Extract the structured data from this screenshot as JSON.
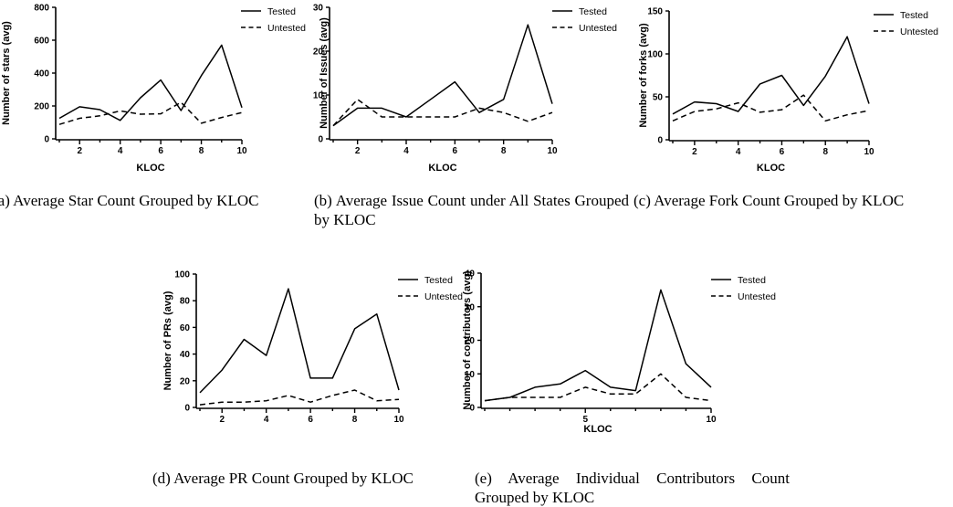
{
  "chart_data": [
    {
      "type": "line",
      "xlabel": "KLOC",
      "ylabel": "Number of stars (avg)",
      "x": [
        1,
        2,
        3,
        4,
        5,
        6,
        7,
        8,
        9,
        10
      ],
      "xticks": [
        2,
        4,
        6,
        8,
        10
      ],
      "yticks": [
        0,
        200,
        400,
        600,
        800
      ],
      "xlim": [
        1,
        10
      ],
      "ylim": [
        0,
        800
      ],
      "legend_position": "top-right",
      "series": [
        {
          "name": "Tested",
          "style": "solid",
          "values": [
            125,
            195,
            178,
            112,
            250,
            358,
            172,
            385,
            570,
            190
          ]
        },
        {
          "name": "Untested",
          "style": "dashed",
          "values": [
            88,
            125,
            140,
            170,
            150,
            152,
            222,
            95,
            130,
            160
          ]
        }
      ],
      "caption": "(a)  Average  Star  Count  Grouped  by KLOC"
    },
    {
      "type": "line",
      "xlabel": "KLOC",
      "ylabel": "Number of Issues (avg)",
      "x": [
        1,
        2,
        3,
        4,
        5,
        6,
        7,
        8,
        9,
        10
      ],
      "xticks": [
        2,
        4,
        6,
        8,
        10
      ],
      "yticks": [
        0,
        10,
        20,
        30
      ],
      "xlim": [
        1,
        10
      ],
      "ylim": [
        0,
        30
      ],
      "legend_position": "top-right",
      "series": [
        {
          "name": "Tested",
          "style": "solid",
          "values": [
            3,
            7,
            7,
            5,
            9,
            13,
            6,
            9,
            26,
            8
          ]
        },
        {
          "name": "Untested",
          "style": "dashed",
          "values": [
            3,
            9,
            5,
            5,
            5,
            5,
            7,
            6,
            4,
            6
          ]
        }
      ],
      "caption": "(b)  Average Issue Count under All States Grouped by KLOC"
    },
    {
      "type": "line",
      "xlabel": "KLOC",
      "ylabel": "Number of forks (avg)",
      "x": [
        1,
        2,
        3,
        4,
        5,
        6,
        7,
        8,
        9,
        10
      ],
      "xticks": [
        2,
        4,
        6,
        8,
        10
      ],
      "yticks": [
        0,
        50,
        100,
        150
      ],
      "xlim": [
        1,
        10
      ],
      "ylim": [
        0,
        150
      ],
      "legend_position": "top-right",
      "series": [
        {
          "name": "Tested",
          "style": "solid",
          "values": [
            30,
            44,
            42,
            33,
            65,
            75,
            40,
            74,
            120,
            42
          ]
        },
        {
          "name": "Untested",
          "style": "dashed",
          "values": [
            22,
            33,
            36,
            43,
            32,
            35,
            52,
            22,
            29,
            34
          ]
        }
      ],
      "caption": "(c)  Average  Fork  Count  Grouped  by KLOC"
    },
    {
      "type": "line",
      "xlabel": "",
      "ylabel": "Number of PRs (avg)",
      "x": [
        1,
        2,
        3,
        4,
        5,
        6,
        7,
        8,
        9,
        10
      ],
      "xticks": [
        2,
        4,
        6,
        8,
        10
      ],
      "yticks": [
        0,
        20,
        40,
        60,
        80,
        100
      ],
      "xlim": [
        1,
        10
      ],
      "ylim": [
        0,
        100
      ],
      "legend_position": "top-right",
      "series": [
        {
          "name": "Tested",
          "style": "solid",
          "values": [
            11,
            28,
            51,
            39,
            89,
            22,
            22,
            59,
            70,
            13
          ]
        },
        {
          "name": "Untested",
          "style": "dashed",
          "values": [
            2,
            4,
            4,
            5,
            9,
            4,
            9,
            13,
            5,
            6
          ]
        }
      ],
      "caption": "(d)  Average  PR  Count  Grouped  by KLOC"
    },
    {
      "type": "line",
      "xlabel": "KLOC",
      "ylabel": "Number of contributors (avg)",
      "x": [
        1,
        2,
        3,
        4,
        5,
        6,
        7,
        8,
        9,
        10
      ],
      "xticks": [
        5,
        10
      ],
      "yticks": [
        0,
        10,
        20,
        30,
        40
      ],
      "xlim": [
        1,
        10
      ],
      "ylim": [
        0,
        40
      ],
      "legend_position": "top-right",
      "series": [
        {
          "name": "Tested",
          "style": "solid",
          "values": [
            2,
            3,
            6,
            7,
            11,
            6,
            5,
            35,
            13,
            6
          ]
        },
        {
          "name": "Untested",
          "style": "dashed",
          "values": [
            2,
            3,
            3,
            3,
            6,
            4,
            4,
            10,
            3,
            2
          ]
        }
      ],
      "caption": "(e)  Average  Individual  Contributors Count Grouped by KLOC"
    }
  ]
}
